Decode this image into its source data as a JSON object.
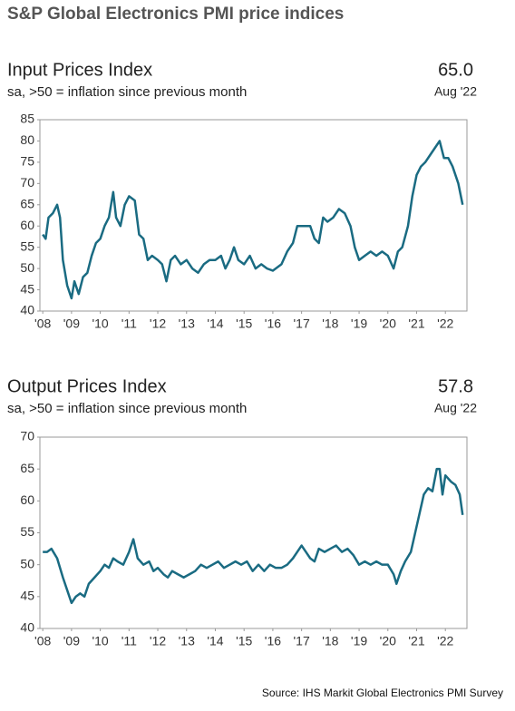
{
  "title": "S&P Global Electronics PMI price indices",
  "source": "Source: IHS Markit Global Electronics PMI Survey",
  "chart_data": [
    {
      "type": "line",
      "title": "Input Prices Index",
      "subtitle": "sa, >50 = inflation since previous month",
      "annotation": "65.0",
      "annotation_date": "Aug '22",
      "color": "#1a6b82",
      "xlim": [
        2007.9,
        2022.75
      ],
      "ylim": [
        40,
        85
      ],
      "yticks": [
        40,
        45,
        50,
        55,
        60,
        65,
        70,
        75,
        80,
        85
      ],
      "xticks": [
        {
          "value": 2008,
          "label": "'08"
        },
        {
          "value": 2009,
          "label": "'09"
        },
        {
          "value": 2010,
          "label": "'10"
        },
        {
          "value": 2011,
          "label": "'11"
        },
        {
          "value": 2012,
          "label": "'12"
        },
        {
          "value": 2013,
          "label": "'13"
        },
        {
          "value": 2014,
          "label": "'14"
        },
        {
          "value": 2015,
          "label": "'15"
        },
        {
          "value": 2016,
          "label": "'16"
        },
        {
          "value": 2017,
          "label": "'17"
        },
        {
          "value": 2018,
          "label": "'18"
        },
        {
          "value": 2019,
          "label": "'19"
        },
        {
          "value": 2020,
          "label": "'20"
        },
        {
          "value": 2021,
          "label": "'21"
        },
        {
          "value": 2022,
          "label": "'22"
        }
      ],
      "x": [
        2008.0,
        2008.1,
        2008.2,
        2008.35,
        2008.5,
        2008.6,
        2008.7,
        2008.85,
        2009.0,
        2009.1,
        2009.25,
        2009.4,
        2009.55,
        2009.7,
        2009.85,
        2010.0,
        2010.15,
        2010.3,
        2010.45,
        2010.55,
        2010.7,
        2010.85,
        2011.0,
        2011.2,
        2011.35,
        2011.5,
        2011.65,
        2011.8,
        2012.0,
        2012.15,
        2012.3,
        2012.45,
        2012.6,
        2012.8,
        2013.0,
        2013.2,
        2013.4,
        2013.6,
        2013.8,
        2014.0,
        2014.2,
        2014.35,
        2014.5,
        2014.65,
        2014.8,
        2015.0,
        2015.2,
        2015.4,
        2015.6,
        2015.8,
        2016.0,
        2016.3,
        2016.5,
        2016.7,
        2016.85,
        2017.1,
        2017.3,
        2017.45,
        2017.6,
        2017.75,
        2017.9,
        2018.1,
        2018.3,
        2018.5,
        2018.7,
        2018.85,
        2019.0,
        2019.2,
        2019.4,
        2019.6,
        2019.8,
        2020.0,
        2020.2,
        2020.35,
        2020.5,
        2020.7,
        2020.85,
        2021.0,
        2021.15,
        2021.3,
        2021.5,
        2021.7,
        2021.8,
        2021.95,
        2022.1,
        2022.25,
        2022.45,
        2022.6
      ],
      "values": [
        58,
        57,
        62,
        63,
        65,
        62,
        52,
        46,
        43,
        47,
        44,
        48,
        49,
        53,
        56,
        57,
        60,
        62,
        68,
        62,
        60,
        65,
        67,
        66,
        58,
        57,
        52,
        53,
        52,
        51,
        47,
        52,
        53,
        51,
        52,
        50,
        49,
        51,
        52,
        52,
        53,
        50,
        52,
        55,
        52,
        51,
        53,
        50,
        51,
        50,
        49.5,
        51,
        54,
        56,
        60,
        60,
        60,
        57,
        56,
        62,
        61,
        62,
        64,
        63,
        60,
        55,
        52,
        53,
        54,
        53,
        54,
        53,
        50,
        54,
        55,
        60,
        67,
        72,
        74,
        75,
        77,
        79,
        80,
        76,
        76,
        74,
        70,
        65.0
      ]
    },
    {
      "type": "line",
      "title": "Output Prices Index",
      "subtitle": "sa, >50 = inflation since previous month",
      "annotation": "57.8",
      "annotation_date": "Aug '22",
      "color": "#1a6b82",
      "xlim": [
        2007.9,
        2022.75
      ],
      "ylim": [
        40,
        70
      ],
      "yticks": [
        40,
        45,
        50,
        55,
        60,
        65,
        70
      ],
      "xticks": [
        {
          "value": 2008,
          "label": "'08"
        },
        {
          "value": 2009,
          "label": "'09"
        },
        {
          "value": 2010,
          "label": "'10"
        },
        {
          "value": 2011,
          "label": "'11"
        },
        {
          "value": 2012,
          "label": "'12"
        },
        {
          "value": 2013,
          "label": "'13"
        },
        {
          "value": 2014,
          "label": "'14"
        },
        {
          "value": 2015,
          "label": "'15"
        },
        {
          "value": 2016,
          "label": "'16"
        },
        {
          "value": 2017,
          "label": "'17"
        },
        {
          "value": 2018,
          "label": "'18"
        },
        {
          "value": 2019,
          "label": "'19"
        },
        {
          "value": 2020,
          "label": "'20"
        },
        {
          "value": 2021,
          "label": "'21"
        },
        {
          "value": 2022,
          "label": "'22"
        }
      ],
      "x": [
        2008.0,
        2008.15,
        2008.3,
        2008.5,
        2008.7,
        2008.85,
        2009.0,
        2009.15,
        2009.3,
        2009.45,
        2009.6,
        2009.8,
        2010.0,
        2010.15,
        2010.3,
        2010.45,
        2010.6,
        2010.8,
        2011.0,
        2011.15,
        2011.3,
        2011.5,
        2011.7,
        2011.85,
        2012.0,
        2012.2,
        2012.35,
        2012.5,
        2012.7,
        2012.9,
        2013.1,
        2013.3,
        2013.5,
        2013.7,
        2013.9,
        2014.1,
        2014.3,
        2014.5,
        2014.7,
        2014.9,
        2015.1,
        2015.3,
        2015.5,
        2015.7,
        2015.9,
        2016.1,
        2016.3,
        2016.5,
        2016.7,
        2016.85,
        2017.0,
        2017.15,
        2017.3,
        2017.45,
        2017.6,
        2017.8,
        2018.0,
        2018.2,
        2018.4,
        2018.6,
        2018.8,
        2019.0,
        2019.2,
        2019.4,
        2019.6,
        2019.8,
        2020.0,
        2020.2,
        2020.3,
        2020.45,
        2020.6,
        2020.8,
        2020.95,
        2021.1,
        2021.25,
        2021.4,
        2021.55,
        2021.7,
        2021.8,
        2021.9,
        2022.0,
        2022.2,
        2022.35,
        2022.5,
        2022.6
      ],
      "values": [
        52,
        52,
        52.5,
        51,
        48,
        46,
        44,
        45,
        45.5,
        45,
        47,
        48,
        49,
        50,
        49.5,
        51,
        50.5,
        50,
        52,
        54,
        51,
        50,
        50.5,
        49,
        49.5,
        48.5,
        48,
        49,
        48.5,
        48,
        48.5,
        49,
        50,
        49.5,
        50,
        50.5,
        49.5,
        50,
        50.5,
        50,
        50.5,
        49,
        50,
        49,
        50,
        49.5,
        49.5,
        50,
        51,
        52,
        53,
        52,
        51,
        50.5,
        52.5,
        52,
        52.5,
        53,
        52,
        52.5,
        51.5,
        50,
        50.5,
        50,
        50.5,
        50,
        50,
        48.5,
        47,
        49,
        50.5,
        52,
        55,
        58,
        61,
        62,
        61.5,
        65,
        65,
        61,
        64,
        63,
        62.5,
        61,
        57.8
      ]
    }
  ]
}
